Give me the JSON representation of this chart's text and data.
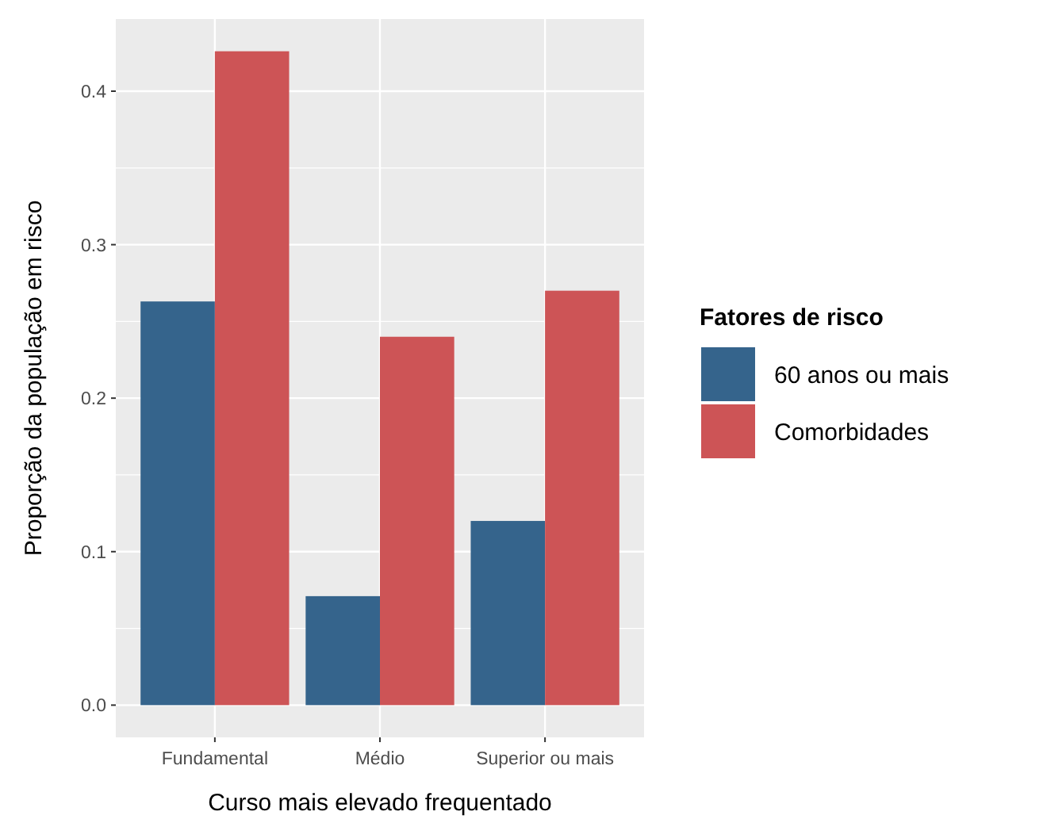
{
  "chart_data": {
    "type": "bar",
    "xlabel": "Curso mais elevado frequentado",
    "ylabel": "Proporção da população em risco",
    "legend_title": "Fatores de risco",
    "categories": [
      "Fundamental",
      "Médio",
      "Superior ou mais"
    ],
    "series": [
      {
        "name": "60 anos ou mais",
        "color": "#35648c",
        "values": [
          0.263,
          0.071,
          0.12
        ]
      },
      {
        "name": "Comorbidades",
        "color": "#cd5456",
        "values": [
          0.426,
          0.24,
          0.27
        ]
      }
    ],
    "ylim": [
      -0.021,
      0.447
    ],
    "yticks": [
      {
        "value": 0,
        "label": "0.0"
      },
      0.1,
      0.2,
      0.3,
      0.4
    ],
    "grid": true,
    "legend": "right"
  }
}
